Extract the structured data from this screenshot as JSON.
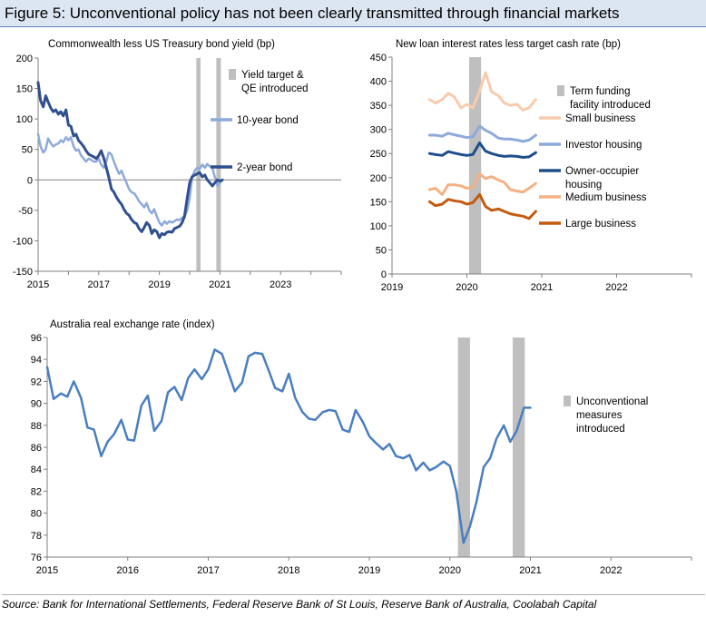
{
  "figure_title": "Figure 5: Unconventional policy has not been clearly transmitted through financial markets",
  "source": "Source: Bank for International Settlements, Federal Reserve Bank of St Louis, Reserve Bank of Australia, Coolabah Capital",
  "colors": {
    "shade": "#bfbfbf",
    "ten_year": "#8eaadb",
    "two_year": "#2f4f8f",
    "small_business": "#f8cbad",
    "investor_housing": "#8eaadb",
    "owner_occupier": "#1f4e8c",
    "medium_business": "#f4b183",
    "large_business": "#c55a11",
    "rer": "#4a7ec0",
    "axis": "#808080"
  },
  "chart_data": [
    {
      "id": "bond",
      "type": "line",
      "title": "Commonwealth less US Treasury bond yield (bp)",
      "xlim": [
        2015,
        2025
      ],
      "ylim": [
        -150,
        200
      ],
      "y_ticks": [
        -150,
        -100,
        -50,
        0,
        50,
        100,
        150,
        200
      ],
      "x_tick_labels": [
        {
          "x": 2015,
          "label": "2015"
        },
        {
          "x": 2017,
          "label": "2017"
        },
        {
          "x": 2019,
          "label": "2019"
        },
        {
          "x": 2021,
          "label": "2021"
        },
        {
          "x": 2023,
          "label": "2023"
        }
      ],
      "shaded_periods": [
        [
          2020.22,
          2020.36
        ],
        [
          2020.88,
          2021.03
        ]
      ],
      "legend": [
        {
          "label": "Yield target &",
          "label2": "QE  introduced",
          "kind": "bar",
          "color": "shade"
        },
        {
          "label": "10-year bond",
          "kind": "line",
          "color": "ten_year"
        },
        {
          "label": "2-year bond",
          "kind": "line",
          "color": "two_year"
        }
      ],
      "series": [
        {
          "name": "10-year bond",
          "color": "ten_year",
          "width": 2.5,
          "x": [
            2015.0,
            2015.08,
            2015.17,
            2015.25,
            2015.33,
            2015.42,
            2015.5,
            2015.58,
            2015.67,
            2015.75,
            2015.83,
            2015.92,
            2016.0,
            2016.08,
            2016.17,
            2016.25,
            2016.33,
            2016.42,
            2016.5,
            2016.58,
            2016.67,
            2016.75,
            2016.83,
            2016.92,
            2017.0,
            2017.08,
            2017.17,
            2017.25,
            2017.33,
            2017.42,
            2017.5,
            2017.58,
            2017.67,
            2017.75,
            2017.83,
            2017.92,
            2018.0,
            2018.08,
            2018.17,
            2018.25,
            2018.33,
            2018.42,
            2018.5,
            2018.58,
            2018.67,
            2018.75,
            2018.83,
            2018.92,
            2019.0,
            2019.08,
            2019.17,
            2019.25,
            2019.33,
            2019.42,
            2019.5,
            2019.58,
            2019.67,
            2019.75,
            2019.83,
            2019.92,
            2020.0,
            2020.08,
            2020.17,
            2020.25,
            2020.33,
            2020.42,
            2020.5,
            2020.58,
            2020.67,
            2020.75,
            2020.83,
            2020.92,
            2021.0,
            2021.08
          ],
          "y": [
            75,
            55,
            45,
            50,
            68,
            60,
            55,
            58,
            60,
            65,
            62,
            70,
            65,
            70,
            55,
            48,
            50,
            40,
            35,
            30,
            35,
            33,
            30,
            30,
            35,
            25,
            20,
            30,
            45,
            42,
            30,
            20,
            10,
            15,
            5,
            -5,
            -15,
            -20,
            -22,
            -28,
            -35,
            -40,
            -45,
            -38,
            -50,
            -55,
            -48,
            -60,
            -70,
            -75,
            -68,
            -72,
            -68,
            -70,
            -68,
            -65,
            -66,
            -62,
            -60,
            -50,
            -30,
            5,
            15,
            20,
            18,
            25,
            20,
            26,
            22,
            20,
            5,
            -10,
            -5,
            0
          ]
        },
        {
          "name": "2-year bond",
          "color": "two_year",
          "width": 3,
          "x": [
            2015.0,
            2015.08,
            2015.17,
            2015.25,
            2015.33,
            2015.42,
            2015.5,
            2015.58,
            2015.67,
            2015.75,
            2015.83,
            2015.92,
            2016.0,
            2016.08,
            2016.17,
            2016.25,
            2016.33,
            2016.42,
            2016.5,
            2016.58,
            2016.67,
            2016.75,
            2016.83,
            2016.92,
            2017.0,
            2017.08,
            2017.17,
            2017.25,
            2017.33,
            2017.42,
            2017.5,
            2017.58,
            2017.67,
            2017.75,
            2017.83,
            2017.92,
            2018.0,
            2018.08,
            2018.17,
            2018.25,
            2018.33,
            2018.42,
            2018.5,
            2018.58,
            2018.67,
            2018.75,
            2018.83,
            2018.92,
            2019.0,
            2019.08,
            2019.17,
            2019.25,
            2019.33,
            2019.42,
            2019.5,
            2019.58,
            2019.67,
            2019.75,
            2019.83,
            2019.92,
            2020.0,
            2020.08,
            2020.17,
            2020.25,
            2020.33,
            2020.42,
            2020.5,
            2020.58,
            2020.67,
            2020.75,
            2020.83,
            2020.92,
            2021.0,
            2021.08
          ],
          "y": [
            160,
            130,
            120,
            138,
            128,
            118,
            112,
            115,
            108,
            112,
            105,
            115,
            90,
            88,
            72,
            75,
            65,
            60,
            55,
            48,
            42,
            40,
            38,
            35,
            40,
            48,
            35,
            20,
            5,
            -15,
            -20,
            -28,
            -35,
            -40,
            -48,
            -55,
            -58,
            -65,
            -70,
            -72,
            -80,
            -85,
            -78,
            -70,
            -75,
            -88,
            -82,
            -85,
            -95,
            -88,
            -90,
            -86,
            -85,
            -86,
            -80,
            -78,
            -76,
            -70,
            -60,
            -30,
            -5,
            5,
            8,
            10,
            12,
            5,
            8,
            0,
            -5,
            -10,
            -5,
            0,
            -2,
            0
          ]
        }
      ]
    },
    {
      "id": "loan",
      "type": "line",
      "title": "New loan interest rates less target cash rate (bp)",
      "xlim": [
        2019,
        2023
      ],
      "ylim": [
        0,
        450
      ],
      "y_ticks": [
        0,
        50,
        100,
        150,
        200,
        250,
        300,
        350,
        400,
        450
      ],
      "x_tick_labels": [
        {
          "x": 2019,
          "label": "2019"
        },
        {
          "x": 2020,
          "label": "2020"
        },
        {
          "x": 2021,
          "label": "2021"
        },
        {
          "x": 2022,
          "label": "2022"
        }
      ],
      "shaded_periods": [
        [
          2020.03,
          2020.19
        ]
      ],
      "legend": [
        {
          "label": "Term funding",
          "label2": "facility introduced",
          "kind": "bar",
          "color": "shade"
        },
        {
          "label": "Small business",
          "kind": "line",
          "color": "small_business"
        },
        {
          "label": "Investor housing",
          "kind": "line",
          "color": "investor_housing"
        },
        {
          "label": "Owner-occupier",
          "label2": "housing",
          "kind": "line",
          "color": "owner_occupier"
        },
        {
          "label": "Medium business",
          "kind": "line",
          "color": "medium_business"
        },
        {
          "label": "Large business",
          "kind": "line",
          "color": "large_business"
        }
      ],
      "series": [
        {
          "name": "Small business",
          "color": "small_business",
          "x": [
            2019.5,
            2019.58,
            2019.67,
            2019.75,
            2019.83,
            2019.92,
            2020.0,
            2020.08,
            2020.17,
            2020.25,
            2020.33,
            2020.42,
            2020.5,
            2020.58,
            2020.67,
            2020.75,
            2020.83,
            2020.92
          ],
          "y": [
            362,
            355,
            362,
            375,
            368,
            345,
            352,
            345,
            380,
            418,
            378,
            370,
            355,
            350,
            352,
            340,
            345,
            362
          ]
        },
        {
          "name": "Investor housing",
          "color": "investor_housing",
          "x": [
            2019.5,
            2019.58,
            2019.67,
            2019.75,
            2019.83,
            2019.92,
            2020.0,
            2020.08,
            2020.17,
            2020.25,
            2020.33,
            2020.42,
            2020.5,
            2020.58,
            2020.67,
            2020.75,
            2020.83,
            2020.92
          ],
          "y": [
            288,
            288,
            286,
            292,
            289,
            286,
            283,
            285,
            307,
            298,
            292,
            282,
            280,
            280,
            278,
            275,
            278,
            288
          ]
        },
        {
          "name": "Owner-occupier housing",
          "color": "owner_occupier",
          "x": [
            2019.5,
            2019.58,
            2019.67,
            2019.75,
            2019.83,
            2019.92,
            2020.0,
            2020.08,
            2020.17,
            2020.25,
            2020.33,
            2020.42,
            2020.5,
            2020.58,
            2020.67,
            2020.75,
            2020.83,
            2020.92
          ],
          "y": [
            250,
            248,
            246,
            254,
            251,
            248,
            246,
            248,
            272,
            255,
            250,
            246,
            244,
            245,
            244,
            242,
            243,
            252
          ]
        },
        {
          "name": "Medium business",
          "color": "medium_business",
          "x": [
            2019.5,
            2019.58,
            2019.67,
            2019.75,
            2019.83,
            2019.92,
            2020.0,
            2020.08,
            2020.17,
            2020.25,
            2020.33,
            2020.42,
            2020.5,
            2020.58,
            2020.67,
            2020.75,
            2020.83,
            2020.92
          ],
          "y": [
            175,
            178,
            165,
            185,
            185,
            183,
            178,
            180,
            208,
            198,
            202,
            195,
            190,
            175,
            172,
            170,
            178,
            188
          ]
        },
        {
          "name": "Large business",
          "color": "large_business",
          "x": [
            2019.5,
            2019.58,
            2019.67,
            2019.75,
            2019.83,
            2019.92,
            2020.0,
            2020.08,
            2020.17,
            2020.25,
            2020.33,
            2020.42,
            2020.5,
            2020.58,
            2020.67,
            2020.75,
            2020.83,
            2020.92
          ],
          "y": [
            150,
            142,
            145,
            155,
            152,
            150,
            145,
            148,
            165,
            140,
            132,
            135,
            130,
            125,
            122,
            120,
            115,
            130
          ]
        }
      ]
    },
    {
      "id": "rer",
      "type": "line",
      "title": "Australia real exchange rate (index)",
      "xlim": [
        2015,
        2023
      ],
      "ylim": [
        76,
        96
      ],
      "y_ticks": [
        76,
        78,
        80,
        82,
        84,
        86,
        88,
        90,
        92,
        94,
        96
      ],
      "x_tick_labels": [
        {
          "x": 2015,
          "label": "2015"
        },
        {
          "x": 2016,
          "label": "2016"
        },
        {
          "x": 2017,
          "label": "2017"
        },
        {
          "x": 2018,
          "label": "2018"
        },
        {
          "x": 2019,
          "label": "2019"
        },
        {
          "x": 2020,
          "label": "2020"
        },
        {
          "x": 2021,
          "label": "2021"
        },
        {
          "x": 2022,
          "label": "2022"
        }
      ],
      "shaded_periods": [
        [
          2020.1,
          2020.25
        ],
        [
          2020.78,
          2020.93
        ]
      ],
      "legend": [
        {
          "label": "Unconventional",
          "label2": "measures",
          "label3": "introduced",
          "kind": "bar",
          "color": "shade"
        }
      ],
      "series": [
        {
          "name": "Real exchange rate",
          "color": "rer",
          "width": 2.5,
          "x": [
            2015.0,
            2015.08,
            2015.17,
            2015.25,
            2015.33,
            2015.42,
            2015.5,
            2015.58,
            2015.67,
            2015.75,
            2015.83,
            2015.92,
            2016.0,
            2016.08,
            2016.17,
            2016.25,
            2016.33,
            2016.42,
            2016.5,
            2016.58,
            2016.67,
            2016.75,
            2016.83,
            2016.92,
            2017.0,
            2017.08,
            2017.17,
            2017.25,
            2017.33,
            2017.42,
            2017.5,
            2017.58,
            2017.67,
            2017.75,
            2017.83,
            2017.92,
            2018.0,
            2018.08,
            2018.17,
            2018.25,
            2018.33,
            2018.42,
            2018.5,
            2018.58,
            2018.67,
            2018.75,
            2018.83,
            2018.92,
            2019.0,
            2019.08,
            2019.17,
            2019.25,
            2019.33,
            2019.42,
            2019.5,
            2019.58,
            2019.67,
            2019.75,
            2019.83,
            2019.92,
            2020.0,
            2020.08,
            2020.17,
            2020.25,
            2020.33,
            2020.42,
            2020.5,
            2020.58,
            2020.67,
            2020.75,
            2020.83,
            2020.92,
            2021.0
          ],
          "y": [
            93.3,
            90.4,
            90.9,
            90.6,
            92.0,
            90.5,
            87.8,
            87.6,
            85.2,
            86.5,
            87.2,
            88.5,
            86.7,
            86.6,
            89.8,
            90.7,
            87.5,
            88.4,
            91.0,
            91.5,
            90.3,
            92.3,
            93.1,
            92.2,
            93.1,
            94.9,
            94.5,
            92.8,
            91.1,
            91.9,
            94.3,
            94.6,
            94.5,
            93.0,
            91.4,
            91.1,
            92.7,
            90.5,
            89.2,
            88.6,
            88.5,
            89.2,
            89.4,
            89.3,
            87.6,
            87.4,
            89.4,
            88.3,
            87.0,
            86.4,
            85.8,
            86.3,
            85.2,
            85.0,
            85.3,
            83.9,
            84.6,
            83.9,
            84.2,
            84.7,
            84.3,
            82.0,
            77.3,
            78.8,
            81.0,
            84.2,
            85.0,
            86.8,
            88.0,
            86.5,
            87.5,
            89.6,
            89.6
          ]
        }
      ]
    }
  ]
}
